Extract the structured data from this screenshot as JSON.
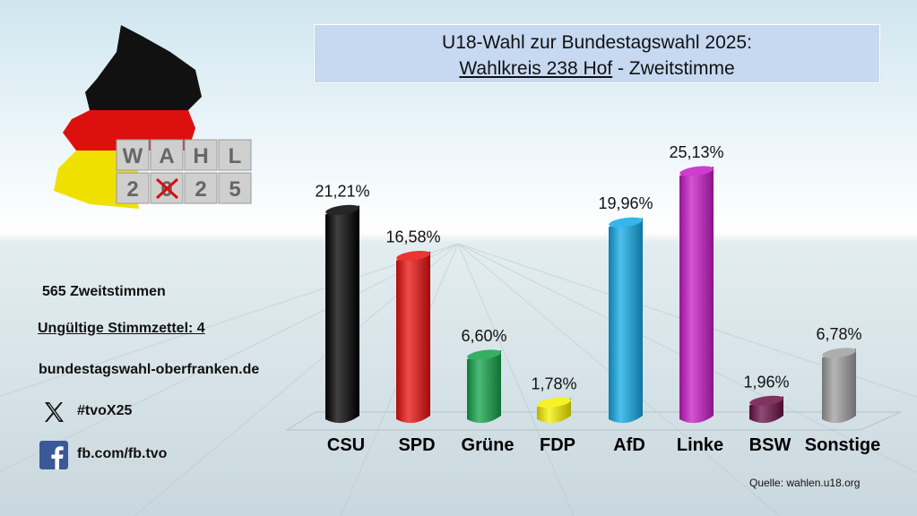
{
  "title": {
    "line1": "U18-Wahl zur Bundestagswahl 2025:",
    "line2_underlined": "Wahlkreis 238 Hof",
    "line2_rest": " - Zweitstimme"
  },
  "logo": {
    "letters_top": [
      "W",
      "A",
      "H",
      "L"
    ],
    "letters_bottom": [
      "2",
      "0",
      "2",
      "5"
    ]
  },
  "info": {
    "votes": "565 Zweitstimmen",
    "invalid": "Ungültige Stimmzettel: 4",
    "website": "bundestagswahl-oberfranken.de",
    "x_handle": "#tvoX25",
    "facebook": "fb.com/fb.tvo"
  },
  "icons": {
    "x": "x-logo-icon",
    "facebook": "facebook-logo-icon"
  },
  "source": "Quelle: wahlen.u18.org",
  "chart_data": {
    "type": "bar",
    "categories": [
      "CSU",
      "SPD",
      "Grüne",
      "FDP",
      "AfD",
      "Linke",
      "BSW",
      "Sonstige"
    ],
    "values": [
      21.21,
      16.58,
      6.6,
      1.78,
      19.96,
      25.13,
      1.96,
      6.78
    ],
    "value_labels": [
      "21,21%",
      "16,58%",
      "6,60%",
      "1,78%",
      "19,96%",
      "25,13%",
      "1,96%",
      "6,78%"
    ],
    "colors": [
      "#000000",
      "#e8100f",
      "#12a14a",
      "#f5f000",
      "#12a9e6",
      "#c61bc6",
      "#6b1045",
      "#9e9e9e"
    ],
    "ylim": [
      0,
      25.13
    ]
  }
}
